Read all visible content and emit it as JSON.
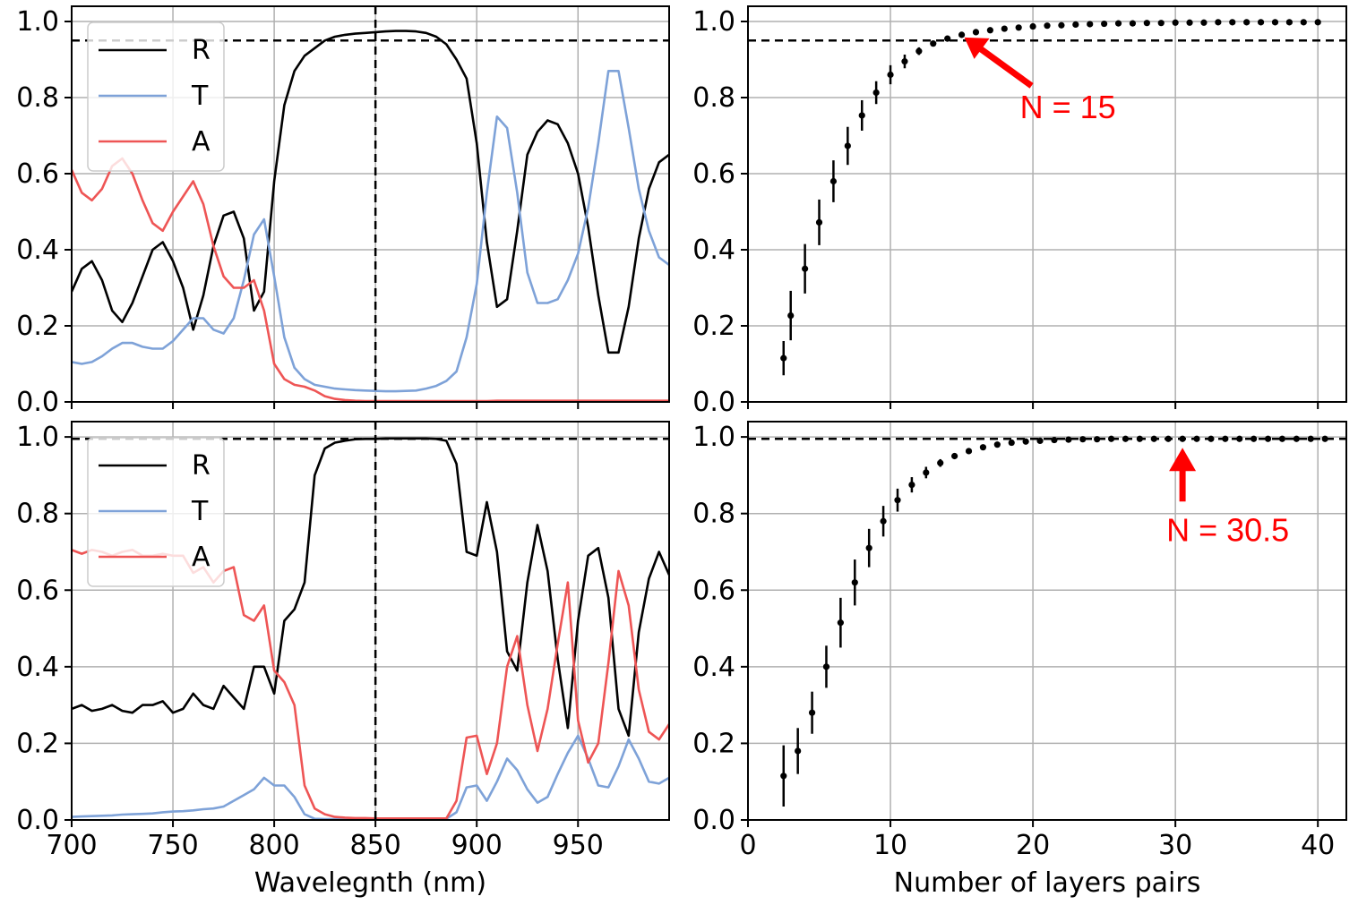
{
  "chart_data": [
    {
      "id": "top-left",
      "type": "line",
      "xlim": [
        700,
        995
      ],
      "ylim": [
        0,
        1.04
      ],
      "xticks": [
        700,
        750,
        800,
        850,
        900,
        950
      ],
      "yticks": [
        0.0,
        0.2,
        0.4,
        0.6,
        0.8,
        1.0
      ],
      "show_xtick_labels": false,
      "xlabel": "",
      "grid": true,
      "legend_position": "upper-left",
      "hline": 0.95,
      "vline": 850,
      "x": [
        700,
        705,
        710,
        715,
        720,
        725,
        730,
        735,
        740,
        745,
        750,
        755,
        760,
        765,
        770,
        775,
        780,
        785,
        790,
        795,
        800,
        805,
        810,
        815,
        820,
        825,
        830,
        835,
        840,
        845,
        850,
        855,
        860,
        865,
        870,
        875,
        880,
        885,
        890,
        895,
        900,
        905,
        910,
        915,
        920,
        925,
        930,
        935,
        940,
        945,
        950,
        955,
        960,
        965,
        970,
        975,
        980,
        985,
        990,
        995
      ],
      "series": [
        {
          "name": "R",
          "color": "#000000",
          "values": [
            0.29,
            0.35,
            0.37,
            0.32,
            0.24,
            0.21,
            0.26,
            0.33,
            0.4,
            0.42,
            0.37,
            0.3,
            0.19,
            0.28,
            0.41,
            0.49,
            0.5,
            0.43,
            0.24,
            0.29,
            0.58,
            0.78,
            0.87,
            0.91,
            0.93,
            0.95,
            0.96,
            0.965,
            0.968,
            0.97,
            0.972,
            0.974,
            0.975,
            0.975,
            0.974,
            0.97,
            0.96,
            0.94,
            0.9,
            0.85,
            0.68,
            0.42,
            0.25,
            0.27,
            0.45,
            0.65,
            0.71,
            0.74,
            0.73,
            0.68,
            0.6,
            0.46,
            0.28,
            0.13,
            0.13,
            0.25,
            0.43,
            0.56,
            0.63,
            0.65
          ]
        },
        {
          "name": "T",
          "color": "#7ea2d8",
          "values": [
            0.105,
            0.1,
            0.105,
            0.12,
            0.14,
            0.155,
            0.155,
            0.145,
            0.14,
            0.14,
            0.16,
            0.19,
            0.22,
            0.22,
            0.19,
            0.18,
            0.22,
            0.32,
            0.44,
            0.48,
            0.33,
            0.17,
            0.09,
            0.06,
            0.045,
            0.04,
            0.035,
            0.033,
            0.031,
            0.03,
            0.029,
            0.028,
            0.028,
            0.029,
            0.03,
            0.035,
            0.042,
            0.055,
            0.08,
            0.17,
            0.31,
            0.55,
            0.75,
            0.72,
            0.55,
            0.34,
            0.26,
            0.26,
            0.27,
            0.32,
            0.39,
            0.51,
            0.68,
            0.87,
            0.87,
            0.72,
            0.56,
            0.45,
            0.38,
            0.36
          ]
        },
        {
          "name": "A",
          "color": "#ee5555",
          "values": [
            0.61,
            0.55,
            0.53,
            0.56,
            0.62,
            0.64,
            0.6,
            0.53,
            0.47,
            0.45,
            0.5,
            0.54,
            0.58,
            0.52,
            0.41,
            0.33,
            0.3,
            0.3,
            0.32,
            0.24,
            0.1,
            0.06,
            0.045,
            0.04,
            0.03,
            0.015,
            0.008,
            0.005,
            0.003,
            0.002,
            0.002,
            0.002,
            0.002,
            0.002,
            0.002,
            0.002,
            0.002,
            0.002,
            0.002,
            0.002,
            0.002,
            0.002,
            0.003,
            0.003,
            0.003,
            0.003,
            0.003,
            0.003,
            0.003,
            0.003,
            0.003,
            0.003,
            0.003,
            0.003,
            0.003,
            0.003,
            0.003,
            0.003,
            0.003,
            0.003
          ]
        }
      ]
    },
    {
      "id": "top-right",
      "type": "scatter",
      "xlim": [
        0,
        42
      ],
      "ylim": [
        0,
        1.04
      ],
      "xticks": [
        0,
        10,
        20,
        30,
        40
      ],
      "yticks": [
        0.0,
        0.2,
        0.4,
        0.6,
        0.8,
        1.0
      ],
      "show_xtick_labels": false,
      "xlabel": "",
      "grid": true,
      "hline": 0.95,
      "annotation": {
        "text": "N = 15",
        "x": 15,
        "y": 0.965,
        "color": "#ff0000"
      },
      "points": [
        {
          "x": 2.5,
          "y": 0.115,
          "err": 0.045
        },
        {
          "x": 3,
          "y": 0.227,
          "err": 0.065
        },
        {
          "x": 4,
          "y": 0.35,
          "err": 0.065
        },
        {
          "x": 5,
          "y": 0.472,
          "err": 0.06
        },
        {
          "x": 6,
          "y": 0.58,
          "err": 0.055
        },
        {
          "x": 7,
          "y": 0.673,
          "err": 0.05
        },
        {
          "x": 8,
          "y": 0.753,
          "err": 0.04
        },
        {
          "x": 9,
          "y": 0.813,
          "err": 0.03
        },
        {
          "x": 10,
          "y": 0.86,
          "err": 0.025
        },
        {
          "x": 11,
          "y": 0.895,
          "err": 0.018
        },
        {
          "x": 12,
          "y": 0.922,
          "err": 0.01
        },
        {
          "x": 13,
          "y": 0.942,
          "err": 0.006
        },
        {
          "x": 14,
          "y": 0.955,
          "err": 0
        },
        {
          "x": 15,
          "y": 0.965,
          "err": 0
        },
        {
          "x": 16,
          "y": 0.972,
          "err": 0
        },
        {
          "x": 17,
          "y": 0.977,
          "err": 0
        },
        {
          "x": 18,
          "y": 0.981,
          "err": 0
        },
        {
          "x": 19,
          "y": 0.984,
          "err": 0
        },
        {
          "x": 20,
          "y": 0.987,
          "err": 0
        },
        {
          "x": 21,
          "y": 0.989,
          "err": 0
        },
        {
          "x": 22,
          "y": 0.99,
          "err": 0
        },
        {
          "x": 23,
          "y": 0.992,
          "err": 0
        },
        {
          "x": 24,
          "y": 0.993,
          "err": 0
        },
        {
          "x": 25,
          "y": 0.994,
          "err": 0
        },
        {
          "x": 26,
          "y": 0.995,
          "err": 0
        },
        {
          "x": 27,
          "y": 0.995,
          "err": 0
        },
        {
          "x": 28,
          "y": 0.996,
          "err": 0
        },
        {
          "x": 29,
          "y": 0.996,
          "err": 0
        },
        {
          "x": 30,
          "y": 0.997,
          "err": 0
        },
        {
          "x": 31,
          "y": 0.997,
          "err": 0
        },
        {
          "x": 32,
          "y": 0.997,
          "err": 0
        },
        {
          "x": 33,
          "y": 0.998,
          "err": 0
        },
        {
          "x": 34,
          "y": 0.998,
          "err": 0
        },
        {
          "x": 35,
          "y": 0.998,
          "err": 0
        },
        {
          "x": 36,
          "y": 0.998,
          "err": 0
        },
        {
          "x": 37,
          "y": 0.998,
          "err": 0
        },
        {
          "x": 38,
          "y": 0.998,
          "err": 0
        },
        {
          "x": 39,
          "y": 0.998,
          "err": 0
        },
        {
          "x": 40,
          "y": 0.998,
          "err": 0
        }
      ]
    },
    {
      "id": "bottom-left",
      "type": "line",
      "xlim": [
        700,
        995
      ],
      "ylim": [
        0,
        1.04
      ],
      "xticks": [
        700,
        750,
        800,
        850,
        900,
        950
      ],
      "yticks": [
        0.0,
        0.2,
        0.4,
        0.6,
        0.8,
        1.0
      ],
      "show_xtick_labels": true,
      "xlabel": "Wavelegnth (nm)",
      "grid": true,
      "legend_position": "upper-left",
      "hline": 0.995,
      "vline": 850,
      "x": [
        700,
        705,
        710,
        715,
        720,
        725,
        730,
        735,
        740,
        745,
        750,
        755,
        760,
        765,
        770,
        775,
        780,
        785,
        790,
        795,
        800,
        805,
        810,
        815,
        820,
        825,
        830,
        835,
        840,
        845,
        850,
        855,
        860,
        865,
        870,
        875,
        880,
        885,
        890,
        895,
        900,
        905,
        910,
        915,
        920,
        925,
        930,
        935,
        940,
        945,
        950,
        955,
        960,
        965,
        970,
        975,
        980,
        985,
        990,
        995
      ],
      "series": [
        {
          "name": "R",
          "color": "#000000",
          "values": [
            0.29,
            0.3,
            0.285,
            0.29,
            0.3,
            0.285,
            0.28,
            0.3,
            0.3,
            0.31,
            0.28,
            0.29,
            0.33,
            0.3,
            0.29,
            0.35,
            0.32,
            0.29,
            0.4,
            0.4,
            0.33,
            0.52,
            0.55,
            0.62,
            0.9,
            0.97,
            0.985,
            0.99,
            0.994,
            0.995,
            0.995,
            0.996,
            0.996,
            0.996,
            0.996,
            0.996,
            0.995,
            0.99,
            0.93,
            0.7,
            0.69,
            0.83,
            0.7,
            0.44,
            0.39,
            0.62,
            0.77,
            0.65,
            0.42,
            0.24,
            0.52,
            0.69,
            0.71,
            0.58,
            0.29,
            0.22,
            0.49,
            0.63,
            0.7,
            0.64
          ]
        },
        {
          "name": "T",
          "color": "#7ea2d8",
          "values": [
            0.008,
            0.009,
            0.01,
            0.011,
            0.012,
            0.014,
            0.015,
            0.016,
            0.017,
            0.02,
            0.022,
            0.023,
            0.025,
            0.028,
            0.03,
            0.035,
            0.05,
            0.065,
            0.08,
            0.11,
            0.09,
            0.09,
            0.06,
            0.015,
            0.003,
            0.002,
            0.002,
            0.002,
            0.002,
            0.002,
            0.002,
            0.002,
            0.002,
            0.002,
            0.002,
            0.002,
            0.002,
            0.003,
            0.02,
            0.085,
            0.09,
            0.05,
            0.1,
            0.16,
            0.13,
            0.08,
            0.045,
            0.06,
            0.12,
            0.175,
            0.22,
            0.16,
            0.09,
            0.085,
            0.14,
            0.21,
            0.16,
            0.1,
            0.095,
            0.11
          ]
        },
        {
          "name": "A",
          "color": "#ee5555",
          "values": [
            0.705,
            0.695,
            0.705,
            0.7,
            0.69,
            0.7,
            0.705,
            0.69,
            0.69,
            0.695,
            0.69,
            0.69,
            0.645,
            0.66,
            0.62,
            0.65,
            0.66,
            0.535,
            0.52,
            0.56,
            0.39,
            0.36,
            0.3,
            0.09,
            0.03,
            0.015,
            0.008,
            0.006,
            0.005,
            0.005,
            0.004,
            0.004,
            0.004,
            0.004,
            0.004,
            0.004,
            0.004,
            0.004,
            0.05,
            0.215,
            0.22,
            0.12,
            0.2,
            0.4,
            0.48,
            0.3,
            0.18,
            0.29,
            0.46,
            0.62,
            0.26,
            0.15,
            0.2,
            0.41,
            0.65,
            0.56,
            0.34,
            0.23,
            0.21,
            0.25
          ]
        }
      ]
    },
    {
      "id": "bottom-right",
      "type": "scatter",
      "xlim": [
        0,
        42
      ],
      "ylim": [
        0,
        1.04
      ],
      "xticks": [
        0,
        10,
        20,
        30,
        40
      ],
      "yticks": [
        0.0,
        0.2,
        0.4,
        0.6,
        0.8,
        1.0
      ],
      "show_xtick_labels": true,
      "xlabel": "Number of layers pairs",
      "grid": true,
      "hline": 0.995,
      "annotation": {
        "text": "N = 30.5",
        "x": 30.5,
        "y": 0.995,
        "color": "#ff0000"
      },
      "points": [
        {
          "x": 2.5,
          "y": 0.115,
          "err": 0.08
        },
        {
          "x": 3.5,
          "y": 0.18,
          "err": 0.06
        },
        {
          "x": 4.5,
          "y": 0.28,
          "err": 0.055
        },
        {
          "x": 5.5,
          "y": 0.4,
          "err": 0.055
        },
        {
          "x": 6.5,
          "y": 0.515,
          "err": 0.065
        },
        {
          "x": 7.5,
          "y": 0.62,
          "err": 0.06
        },
        {
          "x": 8.5,
          "y": 0.71,
          "err": 0.05
        },
        {
          "x": 9.5,
          "y": 0.78,
          "err": 0.04
        },
        {
          "x": 10.5,
          "y": 0.835,
          "err": 0.03
        },
        {
          "x": 11.5,
          "y": 0.875,
          "err": 0.02
        },
        {
          "x": 12.5,
          "y": 0.907,
          "err": 0.015
        },
        {
          "x": 13.5,
          "y": 0.932,
          "err": 0.01
        },
        {
          "x": 14.5,
          "y": 0.95,
          "err": 0.005
        },
        {
          "x": 15.5,
          "y": 0.963,
          "err": 0
        },
        {
          "x": 16.5,
          "y": 0.973,
          "err": 0
        },
        {
          "x": 17.5,
          "y": 0.98,
          "err": 0
        },
        {
          "x": 18.5,
          "y": 0.985,
          "err": 0
        },
        {
          "x": 19.5,
          "y": 0.988,
          "err": 0
        },
        {
          "x": 20.5,
          "y": 0.99,
          "err": 0
        },
        {
          "x": 21.5,
          "y": 0.992,
          "err": 0
        },
        {
          "x": 22.5,
          "y": 0.993,
          "err": 0
        },
        {
          "x": 23.5,
          "y": 0.994,
          "err": 0
        },
        {
          "x": 24.5,
          "y": 0.994,
          "err": 0
        },
        {
          "x": 25.5,
          "y": 0.995,
          "err": 0
        },
        {
          "x": 26.5,
          "y": 0.995,
          "err": 0
        },
        {
          "x": 27.5,
          "y": 0.995,
          "err": 0
        },
        {
          "x": 28.5,
          "y": 0.995,
          "err": 0
        },
        {
          "x": 29.5,
          "y": 0.995,
          "err": 0
        },
        {
          "x": 30.5,
          "y": 0.995,
          "err": 0
        },
        {
          "x": 31.5,
          "y": 0.995,
          "err": 0
        },
        {
          "x": 32.5,
          "y": 0.995,
          "err": 0
        },
        {
          "x": 33.5,
          "y": 0.995,
          "err": 0
        },
        {
          "x": 34.5,
          "y": 0.995,
          "err": 0
        },
        {
          "x": 35.5,
          "y": 0.995,
          "err": 0
        },
        {
          "x": 36.5,
          "y": 0.995,
          "err": 0
        },
        {
          "x": 37.5,
          "y": 0.995,
          "err": 0
        },
        {
          "x": 38.5,
          "y": 0.995,
          "err": 0
        },
        {
          "x": 39.5,
          "y": 0.995,
          "err": 0
        },
        {
          "x": 40.5,
          "y": 0.995,
          "err": 0
        }
      ]
    }
  ]
}
